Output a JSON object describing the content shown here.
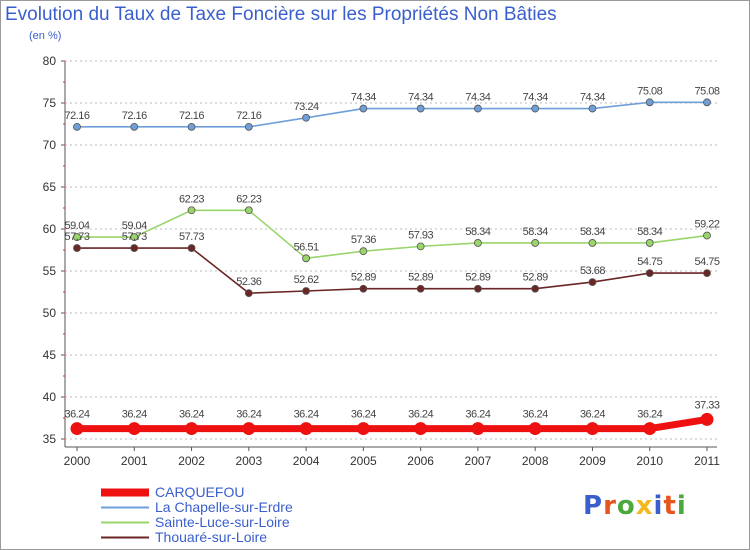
{
  "title": "Evolution du Taux de Taxe Foncière sur les Propriétés Non Bâties",
  "subtitle": "(en %)",
  "logo": {
    "text": "Proxiti",
    "colors": [
      "#3a5fcd",
      "#e8541e",
      "#4aa83c",
      "#f2b81d",
      "#3a5fcd",
      "#e8541e",
      "#4aa83c"
    ]
  },
  "chart_data": {
    "type": "line",
    "title": "Evolution du Taux de Taxe Foncière sur les Propriétés Non Bâties",
    "ylabel": "(en %)",
    "xlabel": "",
    "ylim": [
      35,
      80
    ],
    "yticks": [
      35,
      40,
      45,
      50,
      55,
      60,
      65,
      70,
      75,
      80
    ],
    "x": [
      "2000",
      "2001",
      "2002",
      "2003",
      "2004",
      "2005",
      "2006",
      "2007",
      "2008",
      "2009",
      "2010",
      "2011"
    ],
    "grid": "horizontal dashed",
    "legend_position": "bottom-left",
    "series": [
      {
        "name": "CARQUEFOU",
        "color": "#ee1111",
        "emphasis": true,
        "values": [
          36.24,
          36.24,
          36.24,
          36.24,
          36.24,
          36.24,
          36.24,
          36.24,
          36.24,
          36.24,
          36.24,
          37.33
        ],
        "labels": [
          "36.24",
          "36.24",
          "36.24",
          "36.24",
          "36.24",
          "36.24",
          "36.24",
          "36.24",
          "36.24",
          "36.24",
          "36.24",
          "37.33"
        ]
      },
      {
        "name": "La Chapelle-sur-Erdre",
        "color": "#6f9fd8",
        "emphasis": false,
        "values": [
          72.16,
          72.16,
          72.16,
          72.16,
          73.24,
          74.34,
          74.34,
          74.34,
          74.34,
          74.34,
          75.08,
          75.08
        ],
        "labels": [
          "72.16",
          "72.16",
          "72.16",
          "72.16",
          "73.24",
          "74.34",
          "74.34",
          "74.34",
          "74.34",
          "74.34",
          "75.08",
          "75.08"
        ]
      },
      {
        "name": "Sainte-Luce-sur-Loire",
        "color": "#99d56a",
        "emphasis": false,
        "values": [
          59.04,
          59.04,
          62.23,
          62.23,
          56.51,
          57.36,
          57.93,
          58.34,
          58.34,
          58.34,
          58.34,
          59.22
        ],
        "labels": [
          "59.04",
          "59.04",
          "62.23",
          "62.23",
          "56.51",
          "57.36",
          "57.93",
          "58.34",
          "58.34",
          "58.34",
          "58.34",
          "59.22"
        ]
      },
      {
        "name": "Thouaré-sur-Loire",
        "color": "#6b2626",
        "emphasis": false,
        "values": [
          57.73,
          57.73,
          57.73,
          52.36,
          52.62,
          52.89,
          52.89,
          52.89,
          52.89,
          53.68,
          54.75,
          54.75
        ],
        "labels": [
          "57.73",
          "57.73",
          "57.73",
          "52.36",
          "52.62",
          "52.89",
          "52.89",
          "52.89",
          "52.89",
          "53.68",
          "54.75",
          "54.75"
        ]
      }
    ]
  }
}
